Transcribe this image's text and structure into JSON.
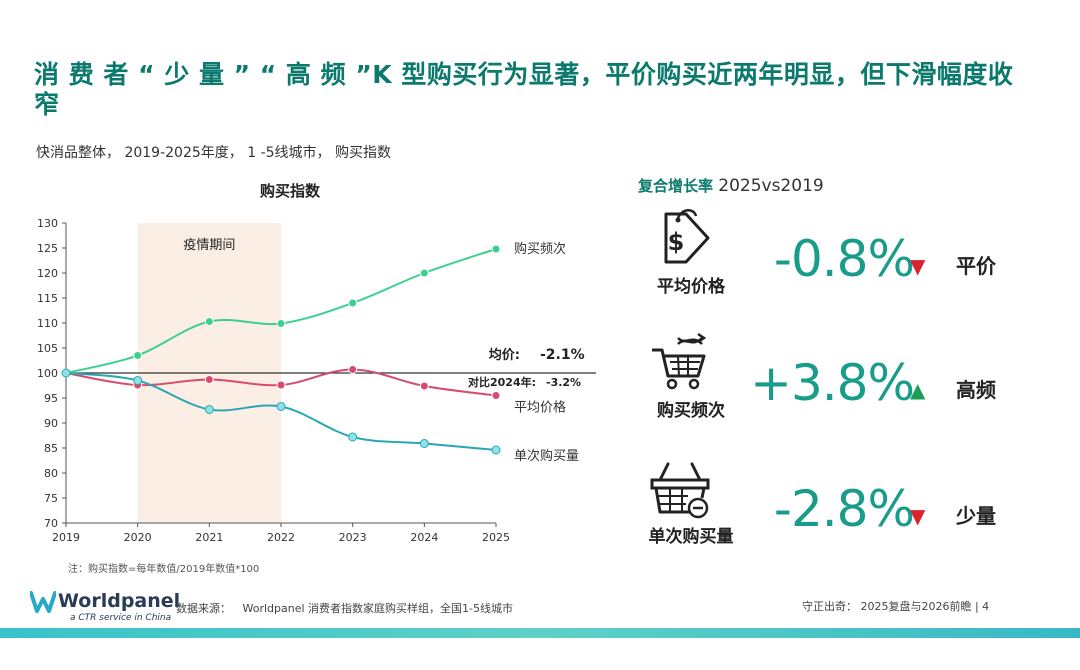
{
  "header": {
    "title": "消 费 者 “ 少 量 ” “ 高 频 ”K 型购买行为显著，平价购买近两年明显，但下滑幅度收窄",
    "subtitle": "快消品整体， 2019-2025年度， 1 -5线城市， 购买指数"
  },
  "chart_data": {
    "type": "line",
    "title": "购买指数",
    "x": [
      "2019",
      "2020",
      "2021",
      "2022",
      "2023",
      "2024",
      "2025"
    ],
    "ylim": [
      70,
      130
    ],
    "yticks": [
      70,
      75,
      80,
      85,
      90,
      95,
      100,
      105,
      110,
      115,
      120,
      125,
      130
    ],
    "shaded_region": {
      "from": "2020",
      "to": "2022",
      "label": "疫情期间"
    },
    "reference_line": 100,
    "series": [
      {
        "name": "购买频次",
        "color": "#3dcf8e",
        "values": [
          100,
          103.5,
          110.3,
          109.9,
          114,
          120,
          124.8
        ]
      },
      {
        "name": "平均价格",
        "color": "#d94a6e",
        "values": [
          100,
          97.6,
          98.7,
          97.6,
          100.7,
          97.4,
          95.5
        ]
      },
      {
        "name": "单次购买量",
        "color": "#2aa7b3",
        "values": [
          100,
          98.5,
          92.7,
          93.3,
          87.2,
          85.9,
          84.6
        ]
      }
    ],
    "annotations": [
      {
        "label": "均价:",
        "value": "-2.1%"
      },
      {
        "label": "对比2024年:",
        "value": "-3.2%"
      }
    ],
    "note": "注：购买指数=每年数值/2019年数值*100"
  },
  "growth": {
    "title": "复合增长率",
    "period": "2025vs2019",
    "metrics": [
      {
        "label": "平均价格",
        "value": "-0.8%",
        "arrow": "▼",
        "direction": "down",
        "tag": "平价",
        "icon": "price-tag-icon"
      },
      {
        "label": "购买频次",
        "value": "+3.8%",
        "arrow": "▲",
        "direction": "up",
        "tag": "高频",
        "icon": "shopping-cart-icon"
      },
      {
        "label": "单次购买量",
        "value": "-2.8%",
        "arrow": "▼",
        "direction": "down",
        "tag": "少量",
        "icon": "basket-icon"
      }
    ]
  },
  "footer": {
    "brand": "Worldpanel",
    "brand_sub": "a CTR service in China",
    "source_label": "数据来源：",
    "source": "Worldpanel 消费者指数家庭购买样组，全国1-5线城市",
    "report": "守正出奇： 2025复盘与2026前瞻 | 4"
  }
}
